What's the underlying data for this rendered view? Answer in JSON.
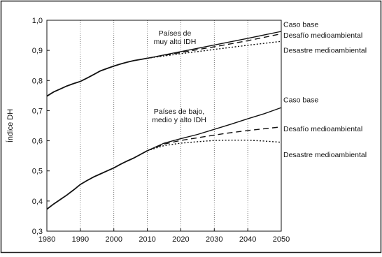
{
  "chart_data": {
    "type": "line",
    "ylabel": "Índice DH",
    "xlabel": "",
    "xlim": [
      1980,
      2050
    ],
    "ylim": [
      0.3,
      1.0
    ],
    "x_ticks": [
      "1980",
      "1990",
      "2000",
      "2010",
      "2020",
      "2030",
      "2040",
      "2050"
    ],
    "y_ticks": [
      "0,3",
      "0,4",
      "0,5",
      "0,6",
      "0,7",
      "0,8",
      "0,9",
      "1,0"
    ],
    "grid": "vertical dotted",
    "groups": [
      {
        "label_lines": [
          "Países de",
          "muy alto IDH"
        ],
        "historical": {
          "x": [
            1980,
            1982,
            1984,
            1986,
            1988,
            1990,
            1992,
            1994,
            1996,
            1998,
            2000,
            2002,
            2004,
            2006,
            2008,
            2010
          ],
          "y": [
            0.748,
            0.762,
            0.772,
            0.782,
            0.79,
            0.797,
            0.808,
            0.82,
            0.832,
            0.84,
            0.848,
            0.855,
            0.861,
            0.866,
            0.87,
            0.874
          ]
        },
        "scenarios": [
          {
            "name": "Caso base",
            "style": "solid",
            "x": [
              2010,
              2020,
              2030,
              2040,
              2050
            ],
            "y": [
              0.874,
              0.896,
              0.918,
              0.94,
              0.963
            ]
          },
          {
            "name": "Desafío medioambiental",
            "style": "dashed",
            "x": [
              2010,
              2020,
              2030,
              2040,
              2050
            ],
            "y": [
              0.874,
              0.893,
              0.912,
              0.932,
              0.955
            ]
          },
          {
            "name": "Desastre medioambiental",
            "style": "dotted",
            "x": [
              2010,
              2020,
              2030,
              2040,
              2050
            ],
            "y": [
              0.874,
              0.889,
              0.903,
              0.917,
              0.93
            ]
          }
        ]
      },
      {
        "label_lines": [
          "Países de bajo,",
          "medio y alto IDH"
        ],
        "historical": {
          "x": [
            1980,
            1982,
            1984,
            1986,
            1988,
            1990,
            1992,
            1994,
            1996,
            1998,
            2000,
            2002,
            2004,
            2006,
            2008,
            2010
          ],
          "y": [
            0.373,
            0.39,
            0.405,
            0.42,
            0.437,
            0.455,
            0.468,
            0.48,
            0.49,
            0.5,
            0.51,
            0.522,
            0.533,
            0.543,
            0.555,
            0.567
          ]
        },
        "scenarios": [
          {
            "name": "Caso base",
            "style": "solid",
            "x": [
              2010,
              2015,
              2020,
              2025,
              2030,
              2035,
              2040,
              2045,
              2050
            ],
            "y": [
              0.567,
              0.592,
              0.607,
              0.621,
              0.638,
              0.655,
              0.673,
              0.69,
              0.71
            ]
          },
          {
            "name": "Desafío medioambiental",
            "style": "dashed",
            "x": [
              2010,
              2015,
              2020,
              2025,
              2030,
              2035,
              2040,
              2045,
              2050
            ],
            "y": [
              0.567,
              0.589,
              0.601,
              0.61,
              0.619,
              0.627,
              0.634,
              0.64,
              0.646
            ]
          },
          {
            "name": "Desastre medioambiental",
            "style": "dotted",
            "x": [
              2010,
              2015,
              2020,
              2025,
              2030,
              2035,
              2040,
              2045,
              2050
            ],
            "y": [
              0.567,
              0.584,
              0.592,
              0.597,
              0.601,
              0.602,
              0.602,
              0.599,
              0.595
            ]
          }
        ]
      }
    ]
  }
}
